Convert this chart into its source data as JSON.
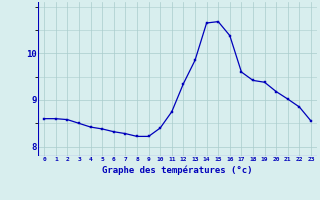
{
  "hours": [
    0,
    1,
    2,
    3,
    4,
    5,
    6,
    7,
    8,
    9,
    10,
    11,
    12,
    13,
    14,
    15,
    16,
    17,
    18,
    19,
    20,
    21,
    22,
    23
  ],
  "temps": [
    8.6,
    8.6,
    8.58,
    8.5,
    8.42,
    8.38,
    8.32,
    8.28,
    8.22,
    8.22,
    8.4,
    8.75,
    9.35,
    9.85,
    10.65,
    10.68,
    10.38,
    9.6,
    9.42,
    9.38,
    9.18,
    9.02,
    8.85,
    8.55
  ],
  "line_color": "#0000bb",
  "bg_color": "#d8eeee",
  "grid_color": "#aacccc",
  "xlabel": "Graphe des températures (°c)",
  "ylim": [
    7.8,
    11.1
  ],
  "yticks": [
    8,
    9,
    10
  ],
  "axis_color": "#0000bb",
  "marker_size": 2.0,
  "line_width": 0.9
}
